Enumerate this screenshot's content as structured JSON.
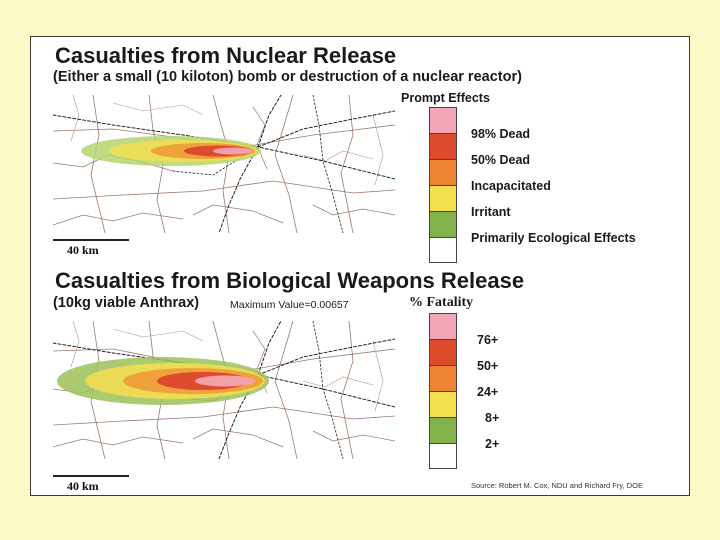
{
  "slide": {
    "background": "#fdfbc5",
    "card_background": "#ffffff"
  },
  "nuclear": {
    "title": "Casualties from Nuclear Release",
    "subtitle": "(Either a small (10 kiloton) bomb or destruction of a nuclear reactor)",
    "scale_label": "40 km",
    "legend_title": "Prompt Effects",
    "legend": [
      {
        "label": "",
        "color": "#f4a6b8"
      },
      {
        "label": "98% Dead",
        "color": "#dc4b2c"
      },
      {
        "label": "50% Dead",
        "color": "#ee8432"
      },
      {
        "label": "Incapacitated",
        "color": "#f4e04e"
      },
      {
        "label": "Irritant",
        "color": "#82b34a"
      },
      {
        "label": "Primarily Ecological Effects",
        "color": "#ffffff"
      }
    ]
  },
  "bio": {
    "title": "Casualties from Biological Weapons Release",
    "subtitle": "(10kg viable Anthrax)",
    "max_value": "Maximum Value=0.00657",
    "scale_label": "40 km",
    "legend_title": "% Fatality",
    "legend": [
      {
        "label": "",
        "color": "#f4a6b8"
      },
      {
        "label": "76+",
        "color": "#dc4b2c"
      },
      {
        "label": "50+",
        "color": "#ee8432"
      },
      {
        "label": "24+",
        "color": "#f4e04e"
      },
      {
        "label": "8+",
        "color": "#82b34a"
      },
      {
        "label": "2+",
        "color": "#ffffff"
      }
    ]
  },
  "source": "Source: Robert M. Cox, NDU and Richard Fry, DOE"
}
